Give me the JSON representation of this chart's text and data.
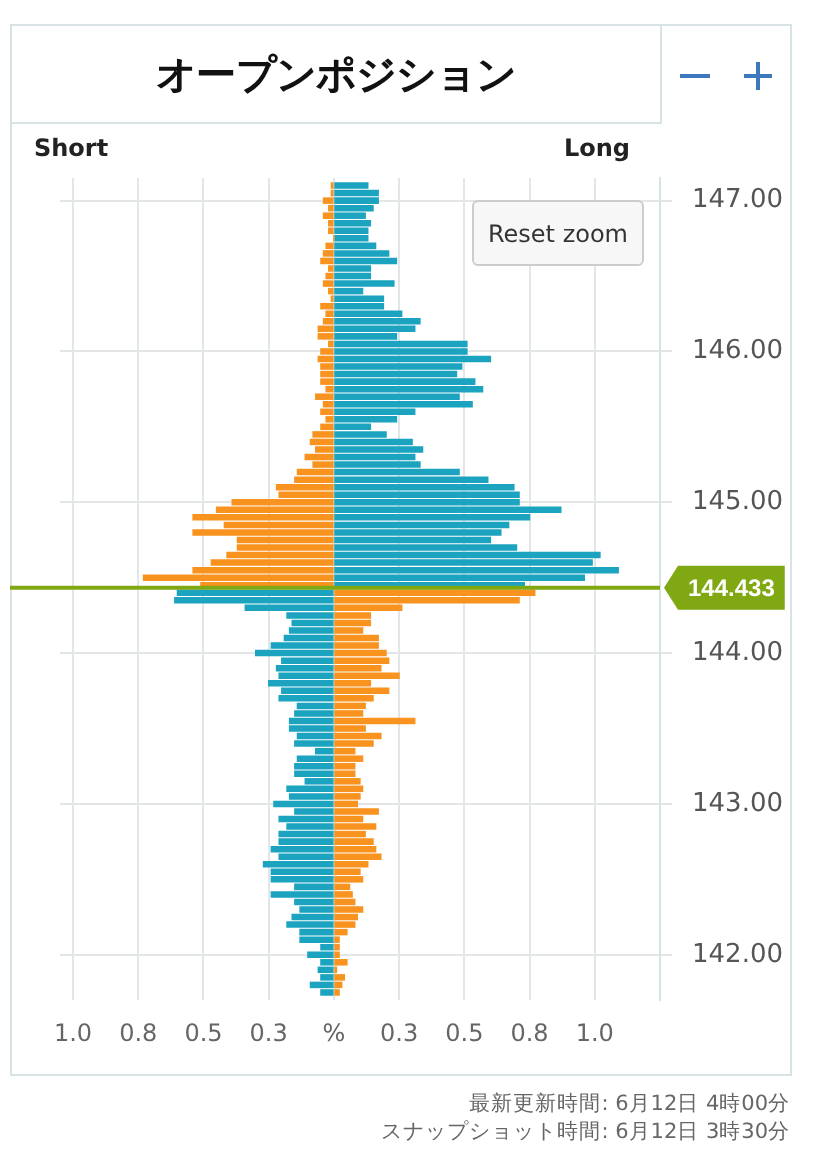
{
  "chart_data": {
    "type": "bar",
    "title": "オープンポジション",
    "orientation": "horizontal",
    "stacked": true,
    "grid": true,
    "x": [
      147.1,
      147.05,
      147,
      146.95,
      146.9,
      146.85,
      146.8,
      146.75,
      146.7,
      146.65,
      146.6,
      146.55,
      146.5,
      146.45,
      146.4,
      146.35,
      146.3,
      146.25,
      146.2,
      146.15,
      146.1,
      146.05,
      146,
      145.95,
      145.9,
      145.85,
      145.8,
      145.75,
      145.7,
      145.65,
      145.6,
      145.55,
      145.5,
      145.45,
      145.4,
      145.35,
      145.3,
      145.25,
      145.2,
      145.15,
      145.1,
      145.05,
      145,
      144.95,
      144.9,
      144.85,
      144.8,
      144.75,
      144.7,
      144.65,
      144.6,
      144.55,
      144.5,
      144.45,
      144.4,
      144.35,
      144.3,
      144.25,
      144.2,
      144.15,
      144.1,
      144.05,
      144,
      143.95,
      143.9,
      143.85,
      143.8,
      143.75,
      143.7,
      143.65,
      143.6,
      143.55,
      143.5,
      143.45,
      143.4,
      143.35,
      143.3,
      143.25,
      143.2,
      143.15,
      143.1,
      143.05,
      143,
      142.95,
      142.9,
      142.85,
      142.8,
      142.75,
      142.7,
      142.65,
      142.6,
      142.55,
      142.5,
      142.45,
      142.4,
      142.35,
      142.3,
      142.25,
      142.2,
      142.15,
      142.1,
      142.05,
      142,
      141.95,
      141.9,
      141.85,
      141.8,
      141.75
    ],
    "series": [
      {
        "values": [
          -0.01,
          -0.01,
          -0.04,
          -0.02,
          -0.04,
          -0.02,
          -0.02,
          0,
          -0.03,
          -0.04,
          -0.05,
          -0.02,
          -0.03,
          -0.04,
          -0.02,
          -0.01,
          -0.05,
          -0.03,
          -0.04,
          -0.06,
          -0.06,
          -0.02,
          -0.05,
          -0.06,
          -0.05,
          -0.05,
          -0.05,
          -0.03,
          -0.07,
          -0.04,
          -0.05,
          -0.03,
          -0.05,
          -0.08,
          -0.09,
          -0.07,
          -0.11,
          -0.08,
          -0.14,
          -0.15,
          -0.22,
          -0.21,
          -0.39,
          -0.45,
          -0.54,
          -0.42,
          -0.54,
          -0.37,
          -0.37,
          -0.41,
          -0.47,
          -0.54,
          -0.73,
          -0.51,
          -0.6,
          -0.61,
          -0.34,
          -0.18,
          -0.16,
          -0.17,
          -0.19,
          -0.24,
          -0.3,
          -0.2,
          -0.22,
          -0.21,
          -0.25,
          -0.2,
          -0.21,
          -0.14,
          -0.15,
          -0.17,
          -0.17,
          -0.14,
          -0.15,
          -0.07,
          -0.14,
          -0.15,
          -0.15,
          -0.11,
          -0.18,
          -0.17,
          -0.23,
          -0.15,
          -0.21,
          -0.18,
          -0.21,
          -0.21,
          -0.24,
          -0.21,
          -0.27,
          -0.24,
          -0.24,
          -0.15,
          -0.24,
          -0.15,
          -0.13,
          -0.16,
          -0.18,
          -0.13,
          -0.13,
          -0.05,
          -0.1,
          -0.05,
          -0.06,
          -0.05,
          -0.09,
          -0.05
        ],
        "colors": [
          "#f7931e",
          "#f7931e",
          "#f7931e",
          "#f7931e",
          "#f7931e",
          "#f7931e",
          "#f7931e",
          "#f7931e",
          "#f7931e",
          "#f7931e",
          "#f7931e",
          "#f7931e",
          "#f7931e",
          "#f7931e",
          "#f7931e",
          "#f7931e",
          "#f7931e",
          "#f7931e",
          "#f7931e",
          "#f7931e",
          "#f7931e",
          "#f7931e",
          "#f7931e",
          "#f7931e",
          "#f7931e",
          "#f7931e",
          "#f7931e",
          "#f7931e",
          "#f7931e",
          "#f7931e",
          "#f7931e",
          "#f7931e",
          "#f7931e",
          "#f7931e",
          "#f7931e",
          "#f7931e",
          "#f7931e",
          "#f7931e",
          "#f7931e",
          "#f7931e",
          "#f7931e",
          "#f7931e",
          "#f7931e",
          "#f7931e",
          "#f7931e",
          "#f7931e",
          "#f7931e",
          "#f7931e",
          "#f7931e",
          "#f7931e",
          "#f7931e",
          "#f7931e",
          "#f7931e",
          "#f7931e",
          "#1ba3c0",
          "#1ba3c0",
          "#1ba3c0",
          "#1ba3c0",
          "#1ba3c0",
          "#1ba3c0",
          "#1ba3c0",
          "#1ba3c0",
          "#1ba3c0",
          "#1ba3c0",
          "#1ba3c0",
          "#1ba3c0",
          "#1ba3c0",
          "#1ba3c0",
          "#1ba3c0",
          "#1ba3c0",
          "#1ba3c0",
          "#1ba3c0",
          "#1ba3c0",
          "#1ba3c0",
          "#1ba3c0",
          "#1ba3c0",
          "#1ba3c0",
          "#1ba3c0",
          "#1ba3c0",
          "#1ba3c0",
          "#1ba3c0",
          "#1ba3c0",
          "#1ba3c0",
          "#1ba3c0",
          "#1ba3c0",
          "#1ba3c0",
          "#1ba3c0",
          "#1ba3c0",
          "#1ba3c0",
          "#1ba3c0",
          "#1ba3c0",
          "#1ba3c0",
          "#1ba3c0",
          "#1ba3c0",
          "#1ba3c0",
          "#1ba3c0",
          "#1ba3c0",
          "#1ba3c0",
          "#1ba3c0",
          "#1ba3c0",
          "#1ba3c0",
          "#1ba3c0",
          "#1ba3c0",
          "#1ba3c0",
          "#1ba3c0",
          "#1ba3c0",
          "#1ba3c0",
          "#1ba3c0"
        ]
      },
      {
        "values": [
          0.13,
          0.17,
          0.17,
          0.15,
          0.12,
          0.14,
          0.13,
          0.13,
          0.16,
          0.21,
          0.24,
          0.14,
          0.14,
          0.23,
          0.11,
          0.19,
          0.19,
          0.26,
          0.33,
          0.31,
          0.24,
          0.51,
          0.51,
          0.6,
          0.49,
          0.47,
          0.54,
          0.57,
          0.48,
          0.53,
          0.31,
          0.24,
          0.14,
          0.2,
          0.3,
          0.34,
          0.31,
          0.33,
          0.48,
          0.59,
          0.69,
          0.71,
          0.71,
          0.87,
          0.75,
          0.67,
          0.64,
          0.6,
          0.7,
          1.02,
          0.99,
          1.09,
          0.96,
          0.73,
          0.77,
          0.71,
          0.26,
          0.14,
          0.14,
          0.11,
          0.17,
          0.17,
          0.2,
          0.21,
          0.18,
          0.25,
          0.14,
          0.21,
          0.15,
          0.12,
          0.11,
          0.31,
          0.12,
          0.18,
          0.15,
          0.08,
          0.11,
          0.08,
          0.08,
          0.1,
          0.11,
          0.1,
          0.09,
          0.17,
          0.11,
          0.16,
          0.12,
          0.15,
          0.16,
          0.18,
          0.13,
          0.1,
          0.11,
          0.06,
          0.07,
          0.08,
          0.11,
          0.09,
          0.08,
          0.05,
          0.02,
          0.02,
          0.02,
          0.05,
          0.01,
          0.04,
          0.03,
          0.02
        ],
        "colors": [
          "#1ba3c0",
          "#1ba3c0",
          "#1ba3c0",
          "#1ba3c0",
          "#1ba3c0",
          "#1ba3c0",
          "#1ba3c0",
          "#1ba3c0",
          "#1ba3c0",
          "#1ba3c0",
          "#1ba3c0",
          "#1ba3c0",
          "#1ba3c0",
          "#1ba3c0",
          "#1ba3c0",
          "#1ba3c0",
          "#1ba3c0",
          "#1ba3c0",
          "#1ba3c0",
          "#1ba3c0",
          "#1ba3c0",
          "#1ba3c0",
          "#1ba3c0",
          "#1ba3c0",
          "#1ba3c0",
          "#1ba3c0",
          "#1ba3c0",
          "#1ba3c0",
          "#1ba3c0",
          "#1ba3c0",
          "#1ba3c0",
          "#1ba3c0",
          "#1ba3c0",
          "#1ba3c0",
          "#1ba3c0",
          "#1ba3c0",
          "#1ba3c0",
          "#1ba3c0",
          "#1ba3c0",
          "#1ba3c0",
          "#1ba3c0",
          "#1ba3c0",
          "#1ba3c0",
          "#1ba3c0",
          "#1ba3c0",
          "#1ba3c0",
          "#1ba3c0",
          "#1ba3c0",
          "#1ba3c0",
          "#1ba3c0",
          "#1ba3c0",
          "#1ba3c0",
          "#1ba3c0",
          "#1ba3c0",
          "#f7931e",
          "#f7931e",
          "#f7931e",
          "#f7931e",
          "#f7931e",
          "#f7931e",
          "#f7931e",
          "#f7931e",
          "#f7931e",
          "#f7931e",
          "#f7931e",
          "#f7931e",
          "#f7931e",
          "#f7931e",
          "#f7931e",
          "#f7931e",
          "#f7931e",
          "#f7931e",
          "#f7931e",
          "#f7931e",
          "#f7931e",
          "#f7931e",
          "#f7931e",
          "#f7931e",
          "#f7931e",
          "#f7931e",
          "#f7931e",
          "#f7931e",
          "#f7931e",
          "#f7931e",
          "#f7931e",
          "#f7931e",
          "#f7931e",
          "#f7931e",
          "#f7931e",
          "#f7931e",
          "#f7931e",
          "#f7931e",
          "#f7931e",
          "#f7931e",
          "#f7931e",
          "#f7931e",
          "#f7931e",
          "#f7931e",
          "#f7931e",
          "#f7931e",
          "#f7931e",
          "#f7931e",
          "#f7931e",
          "#f7931e",
          "#f7931e",
          "#f7931e",
          "#f7931e",
          "#f7931e"
        ]
      }
    ],
    "xlim": [
      -1.05,
      1.25
    ],
    "xticks": [
      {
        "value": -1,
        "label": "1.0"
      },
      {
        "value": -0.75,
        "label": "0.8"
      },
      {
        "value": -0.5,
        "label": "0.5"
      },
      {
        "value": -0.25,
        "label": "0.3"
      },
      {
        "value": 0,
        "label": "%"
      },
      {
        "value": 0.25,
        "label": "0.3"
      },
      {
        "value": 0.5,
        "label": "0.5"
      },
      {
        "value": 0.75,
        "label": "0.8"
      },
      {
        "value": 1,
        "label": "1.0"
      },
      {
        "value": 1.25,
        "label": null
      }
    ],
    "ylim": [
      141.7,
      147.15
    ],
    "yticks": [
      {
        "value": 142,
        "label": "142.00"
      },
      {
        "value": 143,
        "label": "143.00"
      },
      {
        "value": 144,
        "label": "144.00"
      },
      {
        "value": 145,
        "label": "145.00"
      },
      {
        "value": 146,
        "label": "146.00"
      },
      {
        "value": 147,
        "label": "147.00"
      }
    ],
    "ref_lines": [
      {
        "axis": "y",
        "value": 144.433,
        "label": "144.433",
        "color": "#80a812"
      }
    ],
    "annotations": [
      "Short",
      "Long",
      "Reset zoom",
      "最新更新時間: 6月12日 4時00分",
      "スナップショット時間: 6月12日 3時30分"
    ]
  }
}
